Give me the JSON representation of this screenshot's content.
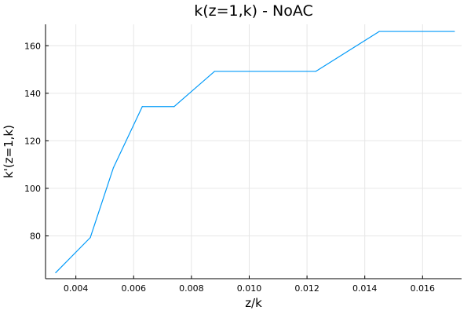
{
  "chart_data": {
    "type": "line",
    "title": "k(z=1,k) - NoAC",
    "xlabel": "z/k",
    "ylabel": "k'(z=1,k)",
    "xlim": [
      0.00295,
      0.01735
    ],
    "ylim": [
      62,
      169
    ],
    "xticks": [
      0.004,
      0.006,
      0.008,
      0.01,
      0.012,
      0.014,
      0.016
    ],
    "xtick_labels": [
      "0.004",
      "0.006",
      "0.008",
      "0.010",
      "0.012",
      "0.014",
      "0.016"
    ],
    "yticks": [
      80,
      100,
      120,
      140,
      160
    ],
    "ytick_labels": [
      "80",
      "100",
      "120",
      "140",
      "160"
    ],
    "grid": true,
    "legend": "none",
    "series": [
      {
        "color": "#009af9",
        "x": [
          0.0033,
          0.0045,
          0.0053,
          0.0063,
          0.0074,
          0.0088,
          0.0123,
          0.0145,
          0.0171
        ],
        "y": [
          64.5,
          79.3,
          108.7,
          134.4,
          134.4,
          149.2,
          149.2,
          166.0,
          166.0
        ]
      }
    ]
  }
}
